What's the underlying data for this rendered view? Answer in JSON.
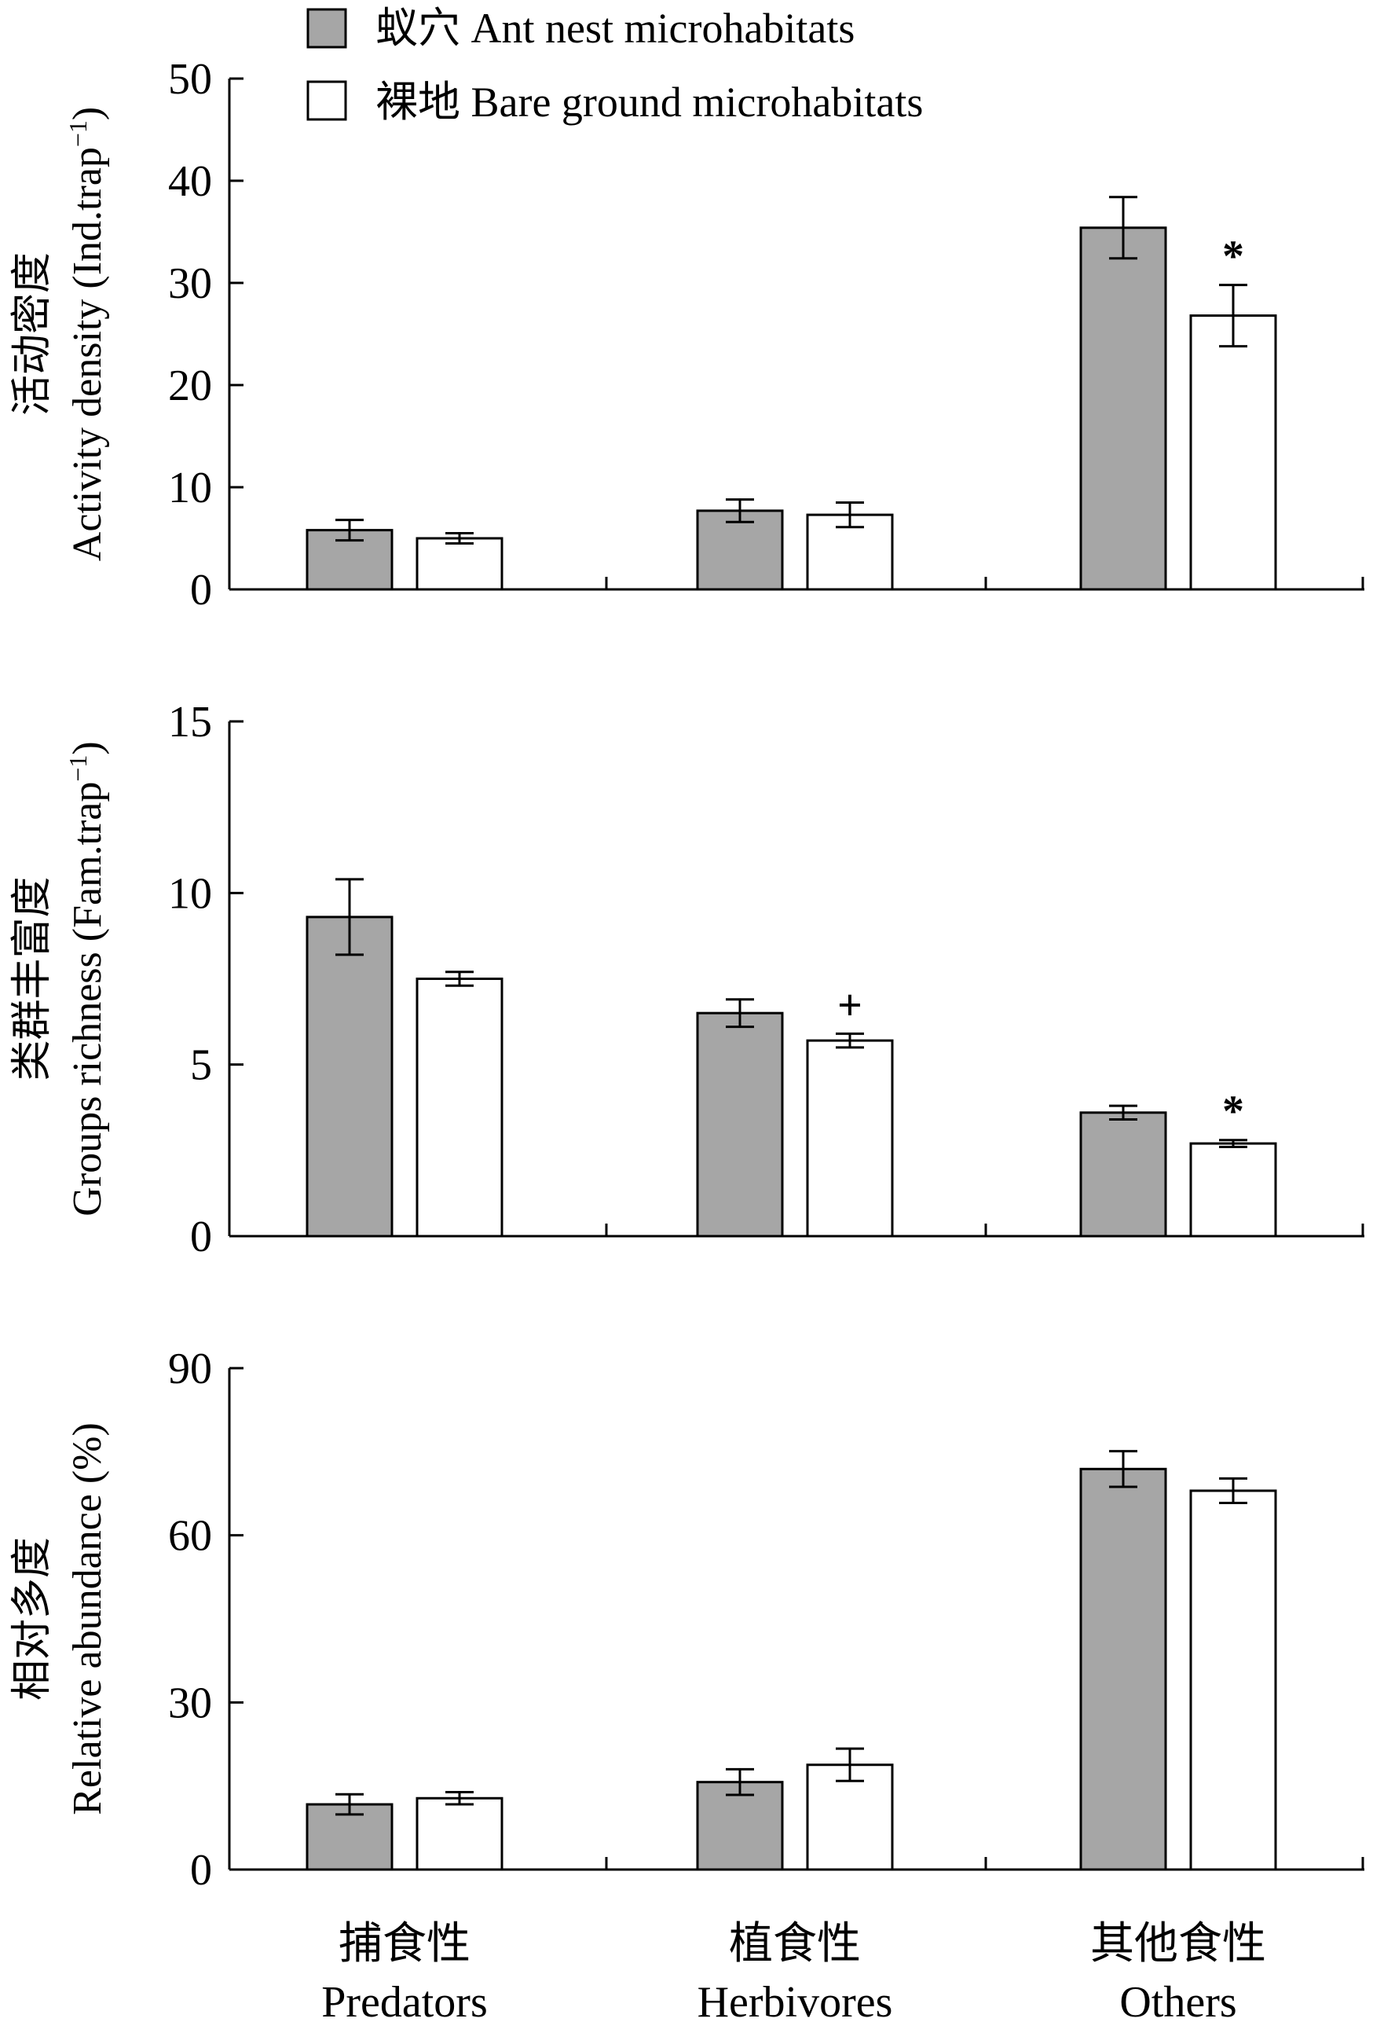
{
  "legend": [
    {
      "label": "蚁穴  Ant nest microhabitats",
      "color": "#a6a6a6"
    },
    {
      "label": "裸地  Bare ground microhabitats",
      "color": "#ffffff"
    }
  ],
  "x_categories": [
    {
      "zh": "捕食性",
      "en": "Predators"
    },
    {
      "zh": "植食性",
      "en": "Herbivores"
    },
    {
      "zh": "其他食性",
      "en": "Others"
    }
  ],
  "chart_data": [
    {
      "type": "bar",
      "ylabel_zh": "活动密度",
      "ylabel_en": "Activity density (Ind.trap",
      "ylabel_sup": "−1",
      "ylabel_close": ")",
      "ylim": [
        0,
        50
      ],
      "yticks": [
        0,
        10,
        20,
        30,
        40,
        50
      ],
      "categories": [
        "Predators",
        "Herbivores",
        "Others"
      ],
      "series": [
        {
          "name": "蚁穴  Ant nest microhabitats",
          "values": [
            5.8,
            7.7,
            35.4
          ],
          "errors": [
            1.0,
            1.1,
            3.0
          ]
        },
        {
          "name": "裸地  Bare ground microhabitats",
          "values": [
            5.0,
            7.3,
            26.8
          ],
          "errors": [
            0.5,
            1.2,
            3.0
          ]
        }
      ],
      "annotations": [
        {
          "category": 2,
          "series": 1,
          "text": "*"
        }
      ]
    },
    {
      "type": "bar",
      "ylabel_zh": "类群丰富度",
      "ylabel_en": "Groups richness (Fam.trap",
      "ylabel_sup": "−1",
      "ylabel_close": ")",
      "ylim": [
        0,
        15
      ],
      "yticks": [
        0,
        5,
        10,
        15
      ],
      "categories": [
        "Predators",
        "Herbivores",
        "Others"
      ],
      "series": [
        {
          "name": "蚁穴  Ant nest microhabitats",
          "values": [
            9.3,
            6.5,
            3.6
          ],
          "errors": [
            1.1,
            0.4,
            0.2
          ]
        },
        {
          "name": "裸地  Bare ground microhabitats",
          "values": [
            7.5,
            5.7,
            2.7
          ],
          "errors": [
            0.2,
            0.2,
            0.1
          ]
        }
      ],
      "annotations": [
        {
          "category": 1,
          "series": 1,
          "text": "+"
        },
        {
          "category": 2,
          "series": 1,
          "text": "*"
        }
      ]
    },
    {
      "type": "bar",
      "ylabel_zh": "相对多度",
      "ylabel_en": "Relative abundance (%)",
      "ylabel_sup": "",
      "ylabel_close": "",
      "ylim": [
        0,
        90
      ],
      "yticks": [
        0,
        30,
        60,
        90
      ],
      "categories": [
        "Predators",
        "Herbivores",
        "Others"
      ],
      "series": [
        {
          "name": "蚁穴  Ant nest microhabitats",
          "values": [
            11.7,
            15.7,
            71.9
          ],
          "errors": [
            1.8,
            2.3,
            3.2
          ]
        },
        {
          "name": "裸地  Bare ground microhabitats",
          "values": [
            12.8,
            18.8,
            68.0
          ],
          "errors": [
            1.1,
            2.9,
            2.2
          ]
        }
      ],
      "annotations": []
    }
  ]
}
